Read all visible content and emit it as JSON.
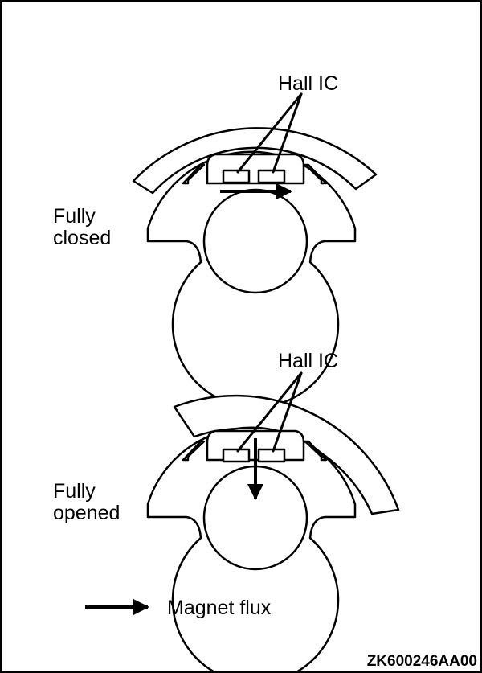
{
  "figure": {
    "top": {
      "sensor_label": "Hall IC",
      "state_label_lines": [
        "Fully",
        "closed"
      ]
    },
    "bottom": {
      "sensor_label": "Hall IC",
      "state_label_lines": [
        "Fully",
        "opened"
      ]
    },
    "legend": {
      "label": "Magnet flux"
    },
    "figure_code": "ZK600246AA00"
  }
}
